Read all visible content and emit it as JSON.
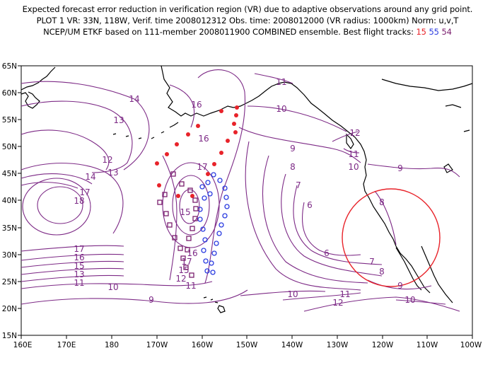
{
  "header": {
    "line1": "Expected forecast error reduction in verification region (VR) due to adaptive observations around any grid point.",
    "line2": "PLOT 1 VR: 33N, 118W, Verif. time 2008012312 Obs. time: 2008012000 (VR radius: 1000km) Norm: u,v,T",
    "line3_prefix": "NCEP/UM ETKF based on 111-member 2008011900 COMBINED ensemble.  Best flight tracks:",
    "track_a": "15",
    "track_b": "55",
    "track_c": "54"
  },
  "axes": {
    "lat_labels": [
      "65N",
      "60N",
      "55N",
      "50N",
      "45N",
      "40N",
      "35N",
      "30N",
      "25N",
      "20N",
      "15N"
    ],
    "lon_labels": [
      "160E",
      "170E",
      "180",
      "170W",
      "160W",
      "150W",
      "140W",
      "130W",
      "120W",
      "110W",
      "100W"
    ]
  },
  "contour_labels": [
    "14",
    "13",
    "12",
    "13",
    "14",
    "17",
    "18",
    "17",
    "16",
    "15",
    "13",
    "11",
    "10",
    "9",
    "16",
    "16",
    "17",
    "15",
    "16",
    "17",
    "15",
    "12",
    "11",
    "11",
    "10",
    "9",
    "8",
    "7",
    "6",
    "6",
    "7",
    "8",
    "9",
    "10",
    "11",
    "12",
    "10",
    "11",
    "12",
    "9",
    "8",
    "10"
  ],
  "colors": {
    "contour": "#7d2a86",
    "track_15": "#e8232a",
    "track_55": "#2a3be0",
    "track_54": "#7b1f6e",
    "verification_circle": "#e8232a"
  }
}
